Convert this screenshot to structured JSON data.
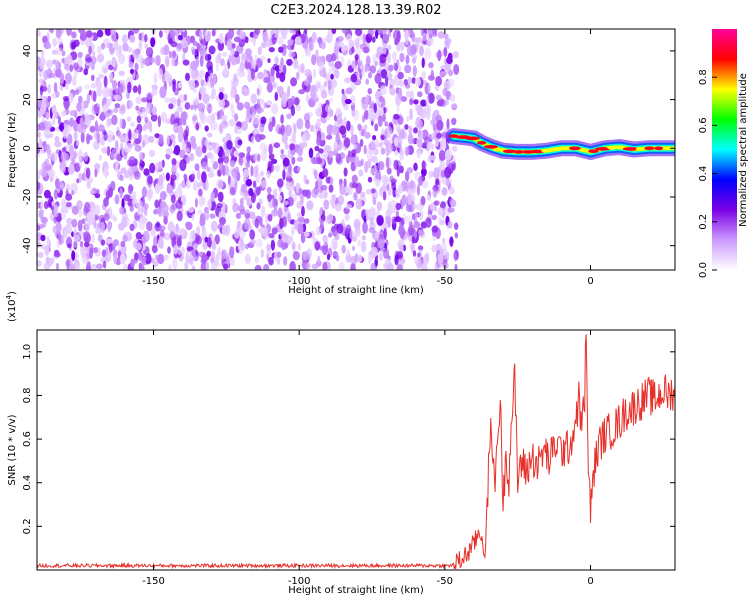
{
  "title": "C2E3.2024.128.13.39.R02",
  "chart_data": [
    {
      "type": "heatmap",
      "xlabel": "Height of straight line (km)",
      "ylabel": "Frequency (Hz)",
      "xlim": [
        -190,
        29
      ],
      "ylim": [
        -50,
        49
      ],
      "x_ticks": [
        -150,
        -100,
        -50,
        0
      ],
      "y_ticks": [
        -40,
        -20,
        0,
        20,
        40
      ],
      "x_tick_labels": [
        "-150",
        "-100",
        "-50",
        "0"
      ],
      "y_tick_labels": [
        "-40",
        "-20",
        "0",
        "20",
        "40"
      ],
      "noise_region": {
        "x_from": -190,
        "x_to": -46,
        "appearance": "purple speckle across full frequency range"
      },
      "signal_track": [
        {
          "x": -47,
          "y": 5
        },
        {
          "x": -43,
          "y": 4.5
        },
        {
          "x": -40,
          "y": 4
        },
        {
          "x": -37,
          "y": 2
        },
        {
          "x": -34,
          "y": 0.5
        },
        {
          "x": -30,
          "y": -1
        },
        {
          "x": -25,
          "y": -1.5
        },
        {
          "x": -20,
          "y": -1.5
        },
        {
          "x": -15,
          "y": -1
        },
        {
          "x": -10,
          "y": 0
        },
        {
          "x": -5,
          "y": 0
        },
        {
          "x": 0,
          "y": -1.5
        },
        {
          "x": 5,
          "y": 0
        },
        {
          "x": 10,
          "y": 0.5
        },
        {
          "x": 15,
          "y": -0.5
        },
        {
          "x": 20,
          "y": 0
        },
        {
          "x": 25,
          "y": 0
        },
        {
          "x": 29,
          "y": 0
        }
      ],
      "grid": false
    },
    {
      "type": "colorbar",
      "label": "Normalized spectral amplitude",
      "range": [
        0,
        1
      ],
      "ticks": [
        0.0,
        0.2,
        0.4,
        0.6,
        0.8
      ],
      "tick_labels": [
        "0.0",
        "0.2",
        "0.4",
        "0.6",
        "0.8"
      ],
      "colors": [
        "#ffffff",
        "#cc99ff",
        "#7a00e6",
        "#0000ff",
        "#00ffff",
        "#00ff00",
        "#ffff00",
        "#ff0000",
        "#ff0099"
      ]
    },
    {
      "type": "line",
      "xlabel": "Height of straight line (km)",
      "ylabel": "SNR (10 * v/v)",
      "y_multiplier_label": "(x10",
      "y_multiplier_exp": "4",
      "xlim": [
        -190,
        29
      ],
      "ylim": [
        0,
        1.1
      ],
      "x_ticks": [
        -150,
        -100,
        -50,
        0
      ],
      "y_ticks": [
        0.2,
        0.4,
        0.6,
        0.8,
        1.0
      ],
      "x_tick_labels": [
        "-150",
        "-100",
        "-50",
        "0"
      ],
      "y_tick_labels": [
        "0.2",
        "0.4",
        "0.6",
        "0.8",
        "1.0"
      ],
      "series": [
        {
          "color": "#e8302a",
          "x": [
            -190,
            -170,
            -150,
            -120,
            -90,
            -60,
            -48,
            -46,
            -44,
            -42,
            -40,
            -38,
            -36,
            -35,
            -34,
            -33,
            -32,
            -31,
            -30,
            -29,
            -28,
            -27,
            -26,
            -25,
            -24,
            -22,
            -20,
            -18,
            -16,
            -14,
            -12,
            -10,
            -8,
            -6,
            -5,
            -4,
            -3,
            -2,
            -1.5,
            -1,
            0,
            1,
            3,
            5,
            8,
            10,
            12,
            15,
            18,
            20,
            22,
            25,
            27,
            29
          ],
          "y": [
            0.02,
            0.02,
            0.02,
            0.02,
            0.02,
            0.02,
            0.02,
            0.03,
            0.05,
            0.08,
            0.12,
            0.18,
            0.08,
            0.45,
            0.7,
            0.35,
            0.6,
            0.78,
            0.3,
            0.55,
            0.42,
            0.72,
            0.87,
            0.4,
            0.5,
            0.45,
            0.52,
            0.48,
            0.55,
            0.5,
            0.58,
            0.55,
            0.55,
            0.62,
            0.7,
            0.78,
            0.65,
            0.8,
            1.12,
            0.6,
            0.25,
            0.45,
            0.58,
            0.62,
            0.65,
            0.68,
            0.72,
            0.75,
            0.78,
            0.8,
            0.78,
            0.82,
            0.8,
            0.83
          ]
        }
      ],
      "grid": false
    }
  ]
}
